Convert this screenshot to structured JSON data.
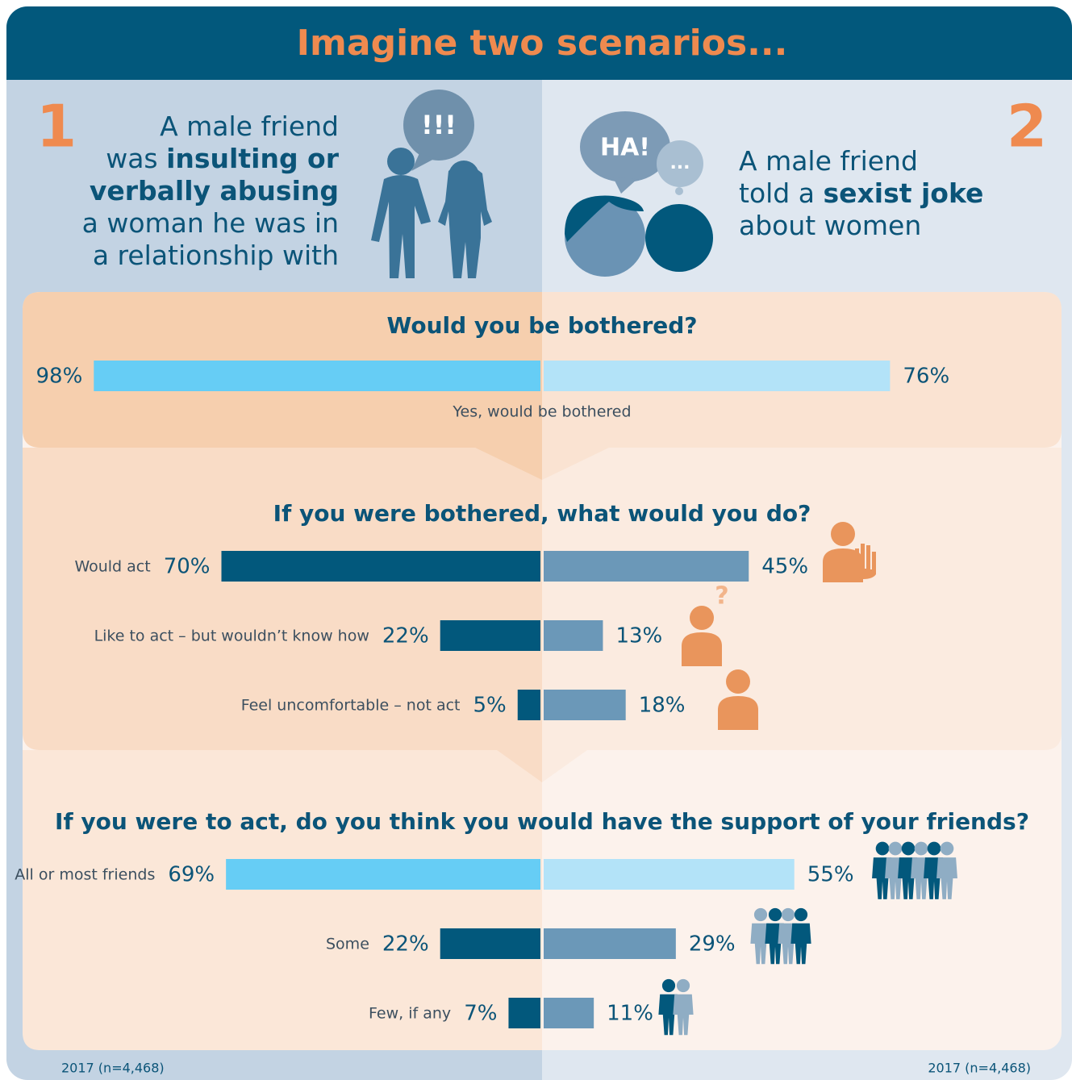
{
  "title": "Imagine two scenarios...",
  "scenarios": [
    {
      "number": "1",
      "icon_label": "!!!",
      "lines": [
        [
          {
            "text": "A male friend"
          }
        ],
        [
          {
            "text": "was "
          },
          {
            "text": "insulting or",
            "bold": true
          }
        ],
        [
          {
            "text": "verbally abusing",
            "bold": true
          }
        ],
        [
          {
            "text": "a woman he was in"
          }
        ],
        [
          {
            "text": "a relationship with"
          }
        ]
      ]
    },
    {
      "number": "2",
      "icon_label": "HA!",
      "icon_label_2": "...",
      "lines": [
        [
          {
            "text": "A male friend"
          }
        ],
        [
          {
            "text": "told a "
          },
          {
            "text": "sexist joke",
            "bold": true
          }
        ],
        [
          {
            "text": "about women"
          }
        ]
      ]
    }
  ],
  "chart_data": [
    {
      "type": "butterfly-bar",
      "title": "Would you be bothered?",
      "categories": [
        "Yes, would be bothered"
      ],
      "series": [
        {
          "colors": [
            "#66cdf5"
          ],
          "values": [
            98
          ],
          "value_labels": [
            "98%"
          ]
        },
        {
          "colors": [
            "#b3e3f8"
          ],
          "values": [
            76
          ],
          "value_labels": [
            "76%"
          ]
        }
      ]
    },
    {
      "type": "butterfly-bar",
      "title": "If you were bothered, what would you do?",
      "categories": [
        "Would act",
        "Like to act – but wouldn’t know how",
        "Feel uncomfortable – not act"
      ],
      "series": [
        {
          "colors": [
            "#02587c",
            "#02587c",
            "#02587c"
          ],
          "values": [
            70,
            22,
            5
          ],
          "value_labels": [
            "70%",
            "22%",
            "5%"
          ]
        },
        {
          "colors": [
            "#6b98b8",
            "#6b98b8",
            "#6b98b8"
          ],
          "values": [
            45,
            13,
            18
          ],
          "value_labels": [
            "45%",
            "13%",
            "18%"
          ]
        }
      ]
    },
    {
      "type": "butterfly-bar",
      "title": "If you were to act, do you think you would have the support of your friends?",
      "categories": [
        "All or most friends",
        "Some",
        "Few, if any"
      ],
      "series": [
        {
          "colors": [
            "#66cdf5",
            "#02587c",
            "#02587c"
          ],
          "values": [
            69,
            22,
            7
          ],
          "value_labels": [
            "69%",
            "22%",
            "7%"
          ]
        },
        {
          "colors": [
            "#b3e3f8",
            "#6b98b8",
            "#6b98b8"
          ],
          "values": [
            55,
            29,
            11
          ],
          "value_labels": [
            "55%",
            "29%",
            "11%"
          ]
        }
      ]
    }
  ],
  "footnotes": [
    "2017 (n=4,468)",
    "2017 (n=4,468)"
  ]
}
